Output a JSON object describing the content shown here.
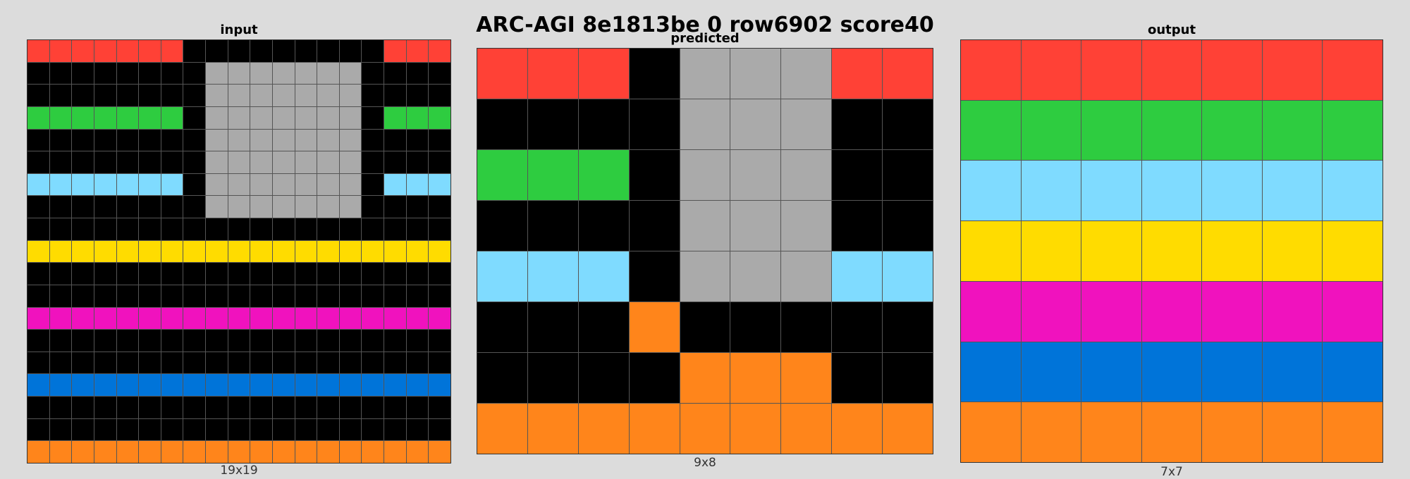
{
  "title": "ARC-AGI 8e1813be 0 row6902 score40",
  "palette": {
    "0": "#000000",
    "1": "#0074d9",
    "2": "#ff4136",
    "3": "#2ecc40",
    "4": "#ffdc00",
    "5": "#aaaaaa",
    "6": "#f012be",
    "7": "#ff851b",
    "8": "#7fdbff"
  },
  "panels": [
    {
      "id": "input",
      "label": "input",
      "caption": "19x19",
      "grid": [
        [
          2,
          2,
          2,
          2,
          2,
          2,
          2,
          0,
          0,
          0,
          0,
          0,
          0,
          0,
          0,
          0,
          2,
          2,
          2
        ],
        [
          0,
          0,
          0,
          0,
          0,
          0,
          0,
          0,
          5,
          5,
          5,
          5,
          5,
          5,
          5,
          0,
          0,
          0,
          0
        ],
        [
          0,
          0,
          0,
          0,
          0,
          0,
          0,
          0,
          5,
          5,
          5,
          5,
          5,
          5,
          5,
          0,
          0,
          0,
          0
        ],
        [
          3,
          3,
          3,
          3,
          3,
          3,
          3,
          0,
          5,
          5,
          5,
          5,
          5,
          5,
          5,
          0,
          3,
          3,
          3
        ],
        [
          0,
          0,
          0,
          0,
          0,
          0,
          0,
          0,
          5,
          5,
          5,
          5,
          5,
          5,
          5,
          0,
          0,
          0,
          0
        ],
        [
          0,
          0,
          0,
          0,
          0,
          0,
          0,
          0,
          5,
          5,
          5,
          5,
          5,
          5,
          5,
          0,
          0,
          0,
          0
        ],
        [
          8,
          8,
          8,
          8,
          8,
          8,
          8,
          0,
          5,
          5,
          5,
          5,
          5,
          5,
          5,
          0,
          8,
          8,
          8
        ],
        [
          0,
          0,
          0,
          0,
          0,
          0,
          0,
          0,
          5,
          5,
          5,
          5,
          5,
          5,
          5,
          0,
          0,
          0,
          0
        ],
        [
          0,
          0,
          0,
          0,
          0,
          0,
          0,
          0,
          0,
          0,
          0,
          0,
          0,
          0,
          0,
          0,
          0,
          0,
          0
        ],
        [
          4,
          4,
          4,
          4,
          4,
          4,
          4,
          4,
          4,
          4,
          4,
          4,
          4,
          4,
          4,
          4,
          4,
          4,
          4
        ],
        [
          0,
          0,
          0,
          0,
          0,
          0,
          0,
          0,
          0,
          0,
          0,
          0,
          0,
          0,
          0,
          0,
          0,
          0,
          0
        ],
        [
          0,
          0,
          0,
          0,
          0,
          0,
          0,
          0,
          0,
          0,
          0,
          0,
          0,
          0,
          0,
          0,
          0,
          0,
          0
        ],
        [
          6,
          6,
          6,
          6,
          6,
          6,
          6,
          6,
          6,
          6,
          6,
          6,
          6,
          6,
          6,
          6,
          6,
          6,
          6
        ],
        [
          0,
          0,
          0,
          0,
          0,
          0,
          0,
          0,
          0,
          0,
          0,
          0,
          0,
          0,
          0,
          0,
          0,
          0,
          0
        ],
        [
          0,
          0,
          0,
          0,
          0,
          0,
          0,
          0,
          0,
          0,
          0,
          0,
          0,
          0,
          0,
          0,
          0,
          0,
          0
        ],
        [
          1,
          1,
          1,
          1,
          1,
          1,
          1,
          1,
          1,
          1,
          1,
          1,
          1,
          1,
          1,
          1,
          1,
          1,
          1
        ],
        [
          0,
          0,
          0,
          0,
          0,
          0,
          0,
          0,
          0,
          0,
          0,
          0,
          0,
          0,
          0,
          0,
          0,
          0,
          0
        ],
        [
          0,
          0,
          0,
          0,
          0,
          0,
          0,
          0,
          0,
          0,
          0,
          0,
          0,
          0,
          0,
          0,
          0,
          0,
          0
        ],
        [
          7,
          7,
          7,
          7,
          7,
          7,
          7,
          7,
          7,
          7,
          7,
          7,
          7,
          7,
          7,
          7,
          7,
          7,
          7
        ]
      ]
    },
    {
      "id": "predicted",
      "label": "predicted",
      "caption": "9x8",
      "grid": [
        [
          2,
          2,
          2,
          0,
          5,
          5,
          5,
          2,
          2
        ],
        [
          0,
          0,
          0,
          0,
          5,
          5,
          5,
          0,
          0
        ],
        [
          3,
          3,
          3,
          0,
          5,
          5,
          5,
          0,
          0
        ],
        [
          0,
          0,
          0,
          0,
          5,
          5,
          5,
          0,
          0
        ],
        [
          8,
          8,
          8,
          0,
          5,
          5,
          5,
          8,
          8
        ],
        [
          0,
          0,
          0,
          7,
          0,
          0,
          0,
          0,
          0
        ],
        [
          0,
          0,
          0,
          0,
          7,
          7,
          7,
          0,
          0
        ],
        [
          7,
          7,
          7,
          7,
          7,
          7,
          7,
          7,
          7
        ]
      ]
    },
    {
      "id": "output",
      "label": "output",
      "caption": "7x7",
      "grid": [
        [
          2,
          2,
          2,
          2,
          2,
          2,
          2
        ],
        [
          3,
          3,
          3,
          3,
          3,
          3,
          3
        ],
        [
          8,
          8,
          8,
          8,
          8,
          8,
          8
        ],
        [
          4,
          4,
          4,
          4,
          4,
          4,
          4
        ],
        [
          6,
          6,
          6,
          6,
          6,
          6,
          6
        ],
        [
          1,
          1,
          1,
          1,
          1,
          1,
          1
        ],
        [
          7,
          7,
          7,
          7,
          7,
          7,
          7
        ]
      ]
    }
  ]
}
